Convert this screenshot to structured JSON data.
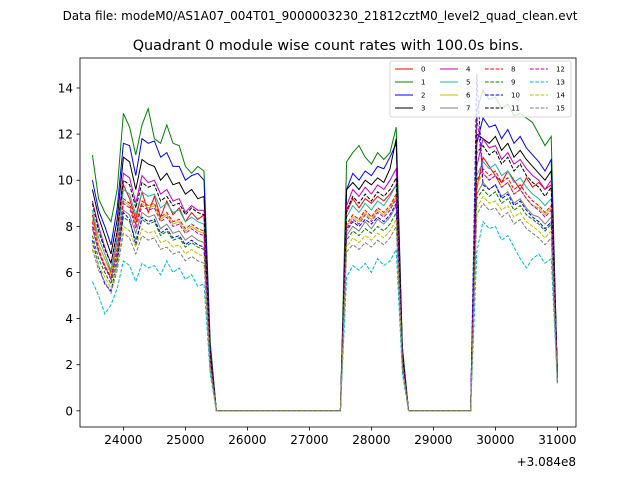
{
  "suptitle": "Data file: modeM0/AS1A07_004T01_9000003230_21812cztM0_level2_quad_clean.evt",
  "chart_data": {
    "type": "line",
    "title": "Quadrant 0 module wise count rates with 100.0s bins.",
    "xlabel": "",
    "ylabel": "",
    "offset_label": "+3.084e8",
    "xlim": [
      23300,
      31300
    ],
    "ylim": [
      -0.7,
      15.3
    ],
    "xticks": [
      24000,
      25000,
      26000,
      27000,
      28000,
      29000,
      30000,
      31000
    ],
    "yticks": [
      0,
      2,
      4,
      6,
      8,
      10,
      12,
      14
    ],
    "legend_position": "top-right",
    "x": [
      23500,
      23600,
      23700,
      23800,
      23900,
      24000,
      24100,
      24200,
      24300,
      24400,
      24500,
      24600,
      24700,
      24800,
      24900,
      25000,
      25100,
      25200,
      25300,
      25400,
      25500,
      25600,
      27400,
      27500,
      27600,
      27700,
      27800,
      27900,
      28000,
      28100,
      28200,
      28300,
      28400,
      28500,
      28600,
      29500,
      29600,
      29700,
      29800,
      29900,
      30000,
      30100,
      30200,
      30300,
      30400,
      30500,
      30600,
      30700,
      30800,
      30900,
      31000
    ],
    "series": [
      {
        "name": "0",
        "color": "#ff0000",
        "dash": "solid",
        "values": [
          8.5,
          7.2,
          6.6,
          6.0,
          7.4,
          9.8,
          9.2,
          8.3,
          9.5,
          8.6,
          9.3,
          8.4,
          9.1,
          8.5,
          8.8,
          8.2,
          8.6,
          8.3,
          8.5,
          2.4,
          0,
          0,
          0,
          0,
          8.6,
          9.2,
          8.8,
          9.2,
          9.0,
          9.3,
          9.1,
          9.4,
          9.8,
          2.2,
          0,
          0,
          0,
          9.6,
          11.0,
          10.6,
          10.2,
          9.9,
          10.4,
          10.0,
          9.6,
          10.1,
          9.7,
          9.9,
          9.6,
          9.8,
          1.6
        ]
      },
      {
        "name": "1",
        "color": "#008000",
        "dash": "solid",
        "values": [
          11.1,
          9.2,
          8.6,
          8.2,
          9.6,
          12.9,
          12.3,
          11.1,
          12.4,
          13.1,
          11.8,
          11.6,
          12.4,
          11.6,
          11.5,
          10.6,
          10.3,
          10.6,
          10.4,
          3.0,
          0,
          0,
          0,
          0,
          10.8,
          11.2,
          11.5,
          11.0,
          10.7,
          11.2,
          10.9,
          11.2,
          12.3,
          2.8,
          0,
          0,
          0,
          13.0,
          13.9,
          13.5,
          13.6,
          13.1,
          13.3,
          12.8,
          12.9,
          12.7,
          12.5,
          12.0,
          11.5,
          11.9,
          1.3
        ]
      },
      {
        "name": "2",
        "color": "#0000ff",
        "dash": "solid",
        "values": [
          10.0,
          8.7,
          8.0,
          7.2,
          8.8,
          11.6,
          11.5,
          10.2,
          11.8,
          11.6,
          11.7,
          11.0,
          11.2,
          10.6,
          10.6,
          10.0,
          10.2,
          10.3,
          10.0,
          2.8,
          0,
          0,
          0,
          0,
          9.6,
          10.3,
          10.0,
          10.4,
          10.2,
          10.6,
          10.5,
          11.0,
          11.6,
          2.6,
          0,
          0,
          0,
          11.6,
          12.7,
          12.3,
          12.4,
          11.8,
          12.2,
          11.6,
          11.9,
          11.4,
          11.1,
          10.8,
          10.4,
          10.9,
          1.7
        ]
      },
      {
        "name": "3",
        "color": "#000000",
        "dash": "solid",
        "values": [
          9.6,
          8.4,
          7.6,
          6.8,
          8.3,
          11.0,
          10.8,
          9.6,
          10.9,
          10.7,
          10.6,
          10.0,
          10.3,
          9.8,
          9.9,
          9.4,
          9.6,
          9.2,
          9.3,
          2.6,
          0,
          0,
          0,
          0,
          9.6,
          9.9,
          9.6,
          10.0,
          9.8,
          10.1,
          9.9,
          10.5,
          11.8,
          2.5,
          0,
          0,
          0,
          12.0,
          11.8,
          11.6,
          11.9,
          11.3,
          11.6,
          11.0,
          11.3,
          10.9,
          10.6,
          10.3,
          10.0,
          10.4,
          1.6
        ]
      },
      {
        "name": "4",
        "color": "#bf00bf",
        "dash": "solid",
        "values": [
          9.1,
          8.0,
          7.1,
          6.4,
          7.8,
          10.3,
          10.1,
          9.0,
          10.2,
          9.9,
          10.0,
          9.4,
          9.6,
          9.1,
          9.2,
          8.6,
          8.9,
          8.7,
          8.7,
          2.5,
          0,
          0,
          0,
          0,
          8.9,
          9.6,
          9.3,
          9.7,
          9.4,
          9.8,
          9.6,
          10.0,
          10.5,
          2.4,
          0,
          0,
          0,
          10.6,
          11.8,
          11.4,
          11.5,
          10.9,
          11.2,
          10.7,
          10.9,
          10.5,
          10.2,
          10.0,
          9.6,
          10.0,
          1.5
        ]
      },
      {
        "name": "5",
        "color": "#20b2aa",
        "dash": "solid",
        "values": [
          8.7,
          7.5,
          6.8,
          6.1,
          7.5,
          9.6,
          9.4,
          8.5,
          9.5,
          9.3,
          9.4,
          8.8,
          9.0,
          8.6,
          8.7,
          8.2,
          8.4,
          8.2,
          8.1,
          2.3,
          0,
          0,
          0,
          0,
          8.4,
          8.9,
          8.6,
          9.0,
          8.7,
          9.1,
          8.9,
          9.3,
          9.8,
          2.3,
          0,
          0,
          0,
          10.2,
          10.8,
          10.5,
          10.7,
          10.2,
          10.4,
          9.9,
          10.1,
          9.7,
          9.4,
          9.2,
          8.9,
          9.2,
          1.4
        ]
      },
      {
        "name": "6",
        "color": "#bfbf00",
        "dash": "solid",
        "values": [
          8.3,
          7.2,
          6.6,
          5.9,
          7.1,
          9.1,
          8.9,
          8.1,
          9.0,
          8.8,
          8.9,
          8.3,
          8.5,
          8.1,
          8.2,
          7.8,
          8.0,
          7.8,
          7.7,
          2.2,
          0,
          0,
          0,
          0,
          8.0,
          8.4,
          8.2,
          8.6,
          8.3,
          8.7,
          8.5,
          8.8,
          9.3,
          2.2,
          0,
          0,
          0,
          9.8,
          10.3,
          10.0,
          10.2,
          9.7,
          9.9,
          9.4,
          9.6,
          9.2,
          8.9,
          8.8,
          8.5,
          8.8,
          1.3
        ]
      },
      {
        "name": "7",
        "color": "#7f7f7f",
        "dash": "solid",
        "values": [
          7.9,
          6.9,
          6.3,
          5.7,
          6.8,
          8.7,
          8.5,
          7.7,
          8.6,
          8.4,
          8.5,
          7.9,
          8.1,
          7.7,
          7.8,
          7.4,
          7.6,
          7.4,
          7.3,
          2.1,
          0,
          0,
          0,
          0,
          7.6,
          8.0,
          7.8,
          8.2,
          7.9,
          8.3,
          8.1,
          8.4,
          8.9,
          2.1,
          0,
          0,
          0,
          9.4,
          9.9,
          9.6,
          9.8,
          9.3,
          9.5,
          9.0,
          9.2,
          8.8,
          8.5,
          8.4,
          8.1,
          8.4,
          1.3
        ]
      },
      {
        "name": "8",
        "color": "#ff0000",
        "dash": "dashed",
        "values": [
          8.2,
          7.0,
          6.3,
          5.8,
          7.0,
          9.2,
          9.0,
          8.1,
          9.1,
          8.9,
          9.0,
          8.4,
          8.6,
          8.2,
          8.3,
          7.9,
          8.1,
          7.9,
          7.8,
          2.2,
          0,
          0,
          0,
          0,
          8.1,
          8.5,
          8.3,
          8.7,
          8.4,
          8.8,
          8.6,
          8.9,
          9.4,
          2.2,
          0,
          0,
          0,
          10.0,
          10.5,
          10.2,
          10.4,
          9.9,
          10.1,
          9.6,
          9.8,
          9.4,
          9.1,
          8.9,
          8.6,
          8.9,
          1.4
        ]
      },
      {
        "name": "9",
        "color": "#008000",
        "dash": "dashed",
        "values": [
          7.6,
          6.6,
          6.0,
          5.5,
          6.6,
          8.4,
          8.2,
          7.4,
          8.3,
          8.1,
          8.2,
          7.6,
          7.8,
          7.4,
          7.5,
          7.1,
          7.3,
          7.1,
          7.0,
          2.0,
          0,
          0,
          0,
          0,
          7.4,
          7.8,
          7.6,
          7.9,
          7.7,
          8.0,
          7.8,
          8.1,
          8.6,
          2.0,
          0,
          0,
          0,
          9.2,
          9.6,
          9.3,
          9.5,
          9.0,
          9.2,
          8.7,
          8.9,
          8.5,
          8.3,
          8.1,
          7.8,
          8.1,
          1.2
        ]
      },
      {
        "name": "10",
        "color": "#0000ff",
        "dash": "dashed",
        "values": [
          7.4,
          6.3,
          5.5,
          5.2,
          6.4,
          8.6,
          8.3,
          7.2,
          8.4,
          8.2,
          8.3,
          7.7,
          7.9,
          7.5,
          7.6,
          7.2,
          7.4,
          7.2,
          7.1,
          2.0,
          0,
          0,
          0,
          0,
          7.8,
          8.2,
          8.0,
          8.3,
          8.1,
          8.4,
          8.2,
          8.5,
          9.0,
          2.1,
          0,
          0,
          0,
          14.6,
          9.8,
          9.6,
          9.8,
          9.2,
          9.4,
          8.9,
          9.1,
          8.7,
          8.4,
          8.2,
          7.9,
          8.2,
          1.3
        ]
      },
      {
        "name": "11",
        "color": "#000000",
        "dash": "dashed",
        "values": [
          9.0,
          7.8,
          7.0,
          6.4,
          7.8,
          10.0,
          9.8,
          8.8,
          9.9,
          9.7,
          9.8,
          9.1,
          9.3,
          8.9,
          9.0,
          8.5,
          8.8,
          8.6,
          8.5,
          2.4,
          0,
          0,
          0,
          0,
          8.7,
          9.3,
          9.0,
          9.4,
          9.1,
          9.5,
          9.3,
          9.6,
          10.1,
          2.4,
          0,
          0,
          0,
          11.2,
          11.5,
          11.1,
          11.3,
          10.7,
          11.0,
          10.4,
          10.7,
          10.2,
          9.9,
          9.7,
          9.3,
          9.7,
          1.5
        ]
      },
      {
        "name": "12",
        "color": "#bf00bf",
        "dash": "dashed",
        "values": [
          8.0,
          6.9,
          6.2,
          5.7,
          6.9,
          9.0,
          8.8,
          7.9,
          8.9,
          8.7,
          8.8,
          8.2,
          8.4,
          8.0,
          8.1,
          7.7,
          7.9,
          7.7,
          7.6,
          2.1,
          0,
          0,
          0,
          0,
          7.9,
          8.3,
          8.1,
          8.5,
          8.2,
          8.6,
          8.4,
          8.7,
          9.2,
          2.1,
          0,
          0,
          0,
          12.8,
          10.3,
          10.0,
          10.2,
          9.7,
          9.9,
          9.4,
          9.6,
          9.2,
          8.9,
          8.7,
          8.4,
          8.7,
          1.4
        ]
      },
      {
        "name": "13",
        "color": "#00bfbf",
        "dash": "dashed",
        "values": [
          5.6,
          5.0,
          4.2,
          4.6,
          5.3,
          6.5,
          6.3,
          5.6,
          6.4,
          6.2,
          6.3,
          5.9,
          6.5,
          6.0,
          6.2,
          5.7,
          5.9,
          5.4,
          5.5,
          1.6,
          0,
          0,
          0,
          0,
          5.8,
          6.3,
          6.1,
          6.4,
          6.0,
          6.6,
          6.3,
          6.5,
          7.0,
          1.6,
          0,
          0,
          0,
          6.9,
          8.2,
          7.9,
          8.0,
          7.4,
          7.6,
          7.1,
          6.6,
          6.2,
          6.6,
          6.8,
          6.4,
          6.6,
          1.2
        ]
      },
      {
        "name": "14",
        "color": "#bfbf00",
        "dash": "dashed",
        "values": [
          7.2,
          6.3,
          5.8,
          5.3,
          6.3,
          8.0,
          7.8,
          7.1,
          7.9,
          7.7,
          7.8,
          7.3,
          7.4,
          7.1,
          7.2,
          6.8,
          7.0,
          6.8,
          6.7,
          1.9,
          0,
          0,
          0,
          0,
          7.1,
          7.5,
          7.3,
          7.6,
          7.4,
          7.7,
          7.5,
          7.8,
          8.3,
          1.9,
          0,
          0,
          0,
          8.8,
          9.3,
          9.0,
          9.1,
          8.7,
          8.9,
          8.4,
          8.6,
          8.2,
          8.0,
          7.8,
          7.5,
          7.8,
          1.2
        ]
      },
      {
        "name": "15",
        "color": "#7f7f7f",
        "dash": "dashed",
        "values": [
          7.0,
          6.1,
          5.6,
          5.1,
          6.1,
          7.7,
          7.5,
          6.8,
          7.6,
          7.4,
          7.5,
          7.0,
          7.1,
          6.8,
          6.9,
          6.5,
          6.7,
          6.5,
          6.4,
          1.8,
          0,
          0,
          0,
          0,
          6.9,
          7.2,
          7.0,
          7.3,
          7.1,
          7.4,
          7.2,
          7.5,
          8.0,
          1.8,
          0,
          0,
          0,
          8.5,
          9.0,
          8.7,
          8.8,
          8.4,
          8.6,
          8.1,
          8.3,
          7.9,
          7.7,
          7.5,
          7.2,
          7.5,
          1.2
        ]
      }
    ]
  }
}
